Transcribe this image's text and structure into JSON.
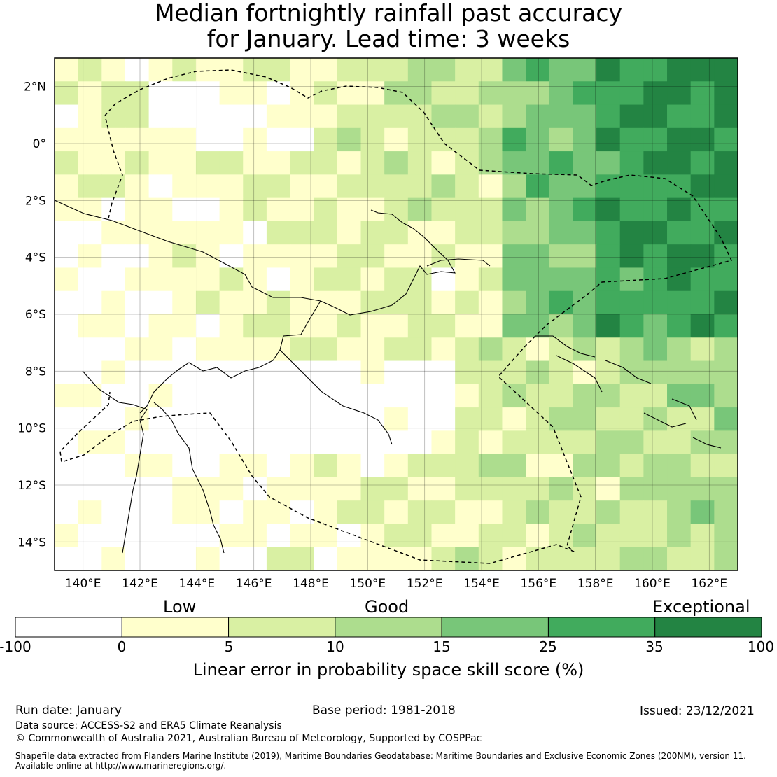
{
  "title": {
    "line1": "Median fortnightly rainfall past accuracy",
    "line2": "for January. Lead time: 3 weeks"
  },
  "map": {
    "lat_labels": [
      "2°N",
      "0°",
      "2°S",
      "4°S",
      "6°S",
      "8°S",
      "10°S",
      "12°S",
      "14°S"
    ],
    "lon_labels": [
      "140°E",
      "142°E",
      "144°E",
      "146°E",
      "148°E",
      "150°E",
      "152°E",
      "154°E",
      "156°E",
      "158°E",
      "160°E",
      "162°E"
    ],
    "lat_range": [
      -15,
      3
    ],
    "lon_range": [
      139,
      163
    ]
  },
  "colorbar": {
    "band_labels": [
      "Low",
      "Good",
      "Exceptional"
    ],
    "ticks": [
      "-100",
      "0",
      "5",
      "10",
      "15",
      "25",
      "35",
      "100"
    ],
    "colors": [
      "#ffffff",
      "#ffffcc",
      "#d9f0a3",
      "#addd8e",
      "#78c679",
      "#41ab5d",
      "#238443"
    ],
    "label": "Linear error in probability space skill score (%)"
  },
  "footer": {
    "run_date": "Run date: January",
    "base_period": "Base period: 1981-2018",
    "issued": "Issued: 23/12/2021",
    "data_source": "Data source: ACCESS-S2 and ERA5 Climate Reanalysis",
    "copyright": "© Commonwealth of Australia 2021, Australian Bureau of Meteorology, Supported by COSPPac",
    "shapefile_line1": "Shapefile data extracted from Flanders Marine Institute (2019), Maritime Boundaries Geodatabase: Maritime Boundaries and Exclusive Economic Zones (200NM), version 11.",
    "shapefile_line2": "Available online at http://www.marineregions.org/."
  }
}
